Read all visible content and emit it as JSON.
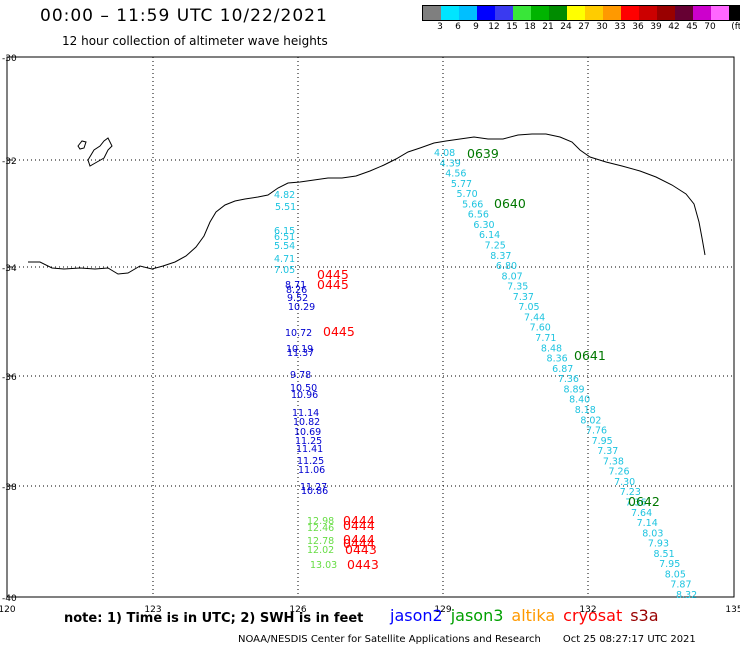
{
  "header": {
    "title": "00:00 – 11:59 UTC 10/22/2021",
    "subtitle": "12 hour collection of altimeter wave heights"
  },
  "colorbar": {
    "colors": [
      "#7f7f7f",
      "#00e5ff",
      "#00bfff",
      "#0000ff",
      "#3a3af0",
      "#39e639",
      "#00b400",
      "#008c00",
      "#ffff00",
      "#ffcc00",
      "#ff9900",
      "#ff0000",
      "#cc0000",
      "#990000",
      "#660033",
      "#cc00cc",
      "#ff66ff",
      "#000000"
    ],
    "ticks": [
      "3",
      "6",
      "9",
      "12",
      "15",
      "18",
      "21",
      "24",
      "27",
      "30",
      "33",
      "36",
      "39",
      "42",
      "45",
      "70",
      "(ft)"
    ]
  },
  "axes": {
    "lat_labels": [
      "-30",
      "-32",
      "-34",
      "-36",
      "-38",
      "-40"
    ],
    "lon_labels": [
      "120",
      "123",
      "126",
      "129",
      "132",
      "135"
    ]
  },
  "tracks": {
    "cyan_near_coast": [
      "4.82",
      "5.51",
      "6.15",
      "6.51",
      "5.54",
      "4.71",
      "7.05"
    ],
    "blue_west": [
      "8.71",
      "8.26",
      "9.52",
      "10.29",
      "10.72",
      "10.19",
      "11.37",
      "9.78",
      "10.50",
      "10.96",
      "11.14",
      "10.82",
      "10.69",
      "11.25",
      "11.41",
      "11.25",
      "11.06",
      "11.27",
      "10.86"
    ],
    "green_west": [
      "12.98",
      "12.46",
      "12.78",
      "12.02",
      "13.03"
    ],
    "cyan_east": [
      "4.08",
      "4.39",
      "4.56",
      "5.77",
      "5.70",
      "5.66",
      "6.56",
      "6.30",
      "6.14",
      "7.25",
      "8.37",
      "6.80",
      "8.07",
      "7.35",
      "7.37",
      "7.05",
      "7.44",
      "7.60",
      "7.71",
      "8.48",
      "8.36",
      "6.87",
      "7.36",
      "8.89",
      "8.40",
      "8.18",
      "8.02",
      "7.76",
      "7.95",
      "7.37",
      "7.38",
      "7.26",
      "7.30",
      "7.23",
      "7.36",
      "7.64",
      "7.14",
      "8.03",
      "7.93",
      "8.51",
      "7.95",
      "8.05",
      "7.87",
      "8.32"
    ]
  },
  "time_labels": {
    "red": [
      "0445",
      "0445",
      "0445",
      "0444",
      "0444",
      "0444",
      "0444",
      "0443",
      "0443"
    ],
    "green": [
      "0639",
      "0640",
      "0641",
      "0642"
    ]
  },
  "footer": {
    "note": "note:  1) Time is in UTC;  2) SWH is in feet",
    "legend": [
      {
        "label": "jason2",
        "color": "#0000ff"
      },
      {
        "label": "jason3",
        "color": "#00a000"
      },
      {
        "label": "altika",
        "color": "#ff9900"
      },
      {
        "label": "cryosat",
        "color": "#ff0000"
      },
      {
        "label": "s3a",
        "color": "#990000"
      }
    ],
    "credit": "NOAA/NESDIS Center for Satellite Applications and Research",
    "timestamp": "Oct 25 08:27:17 UTC 2021"
  }
}
